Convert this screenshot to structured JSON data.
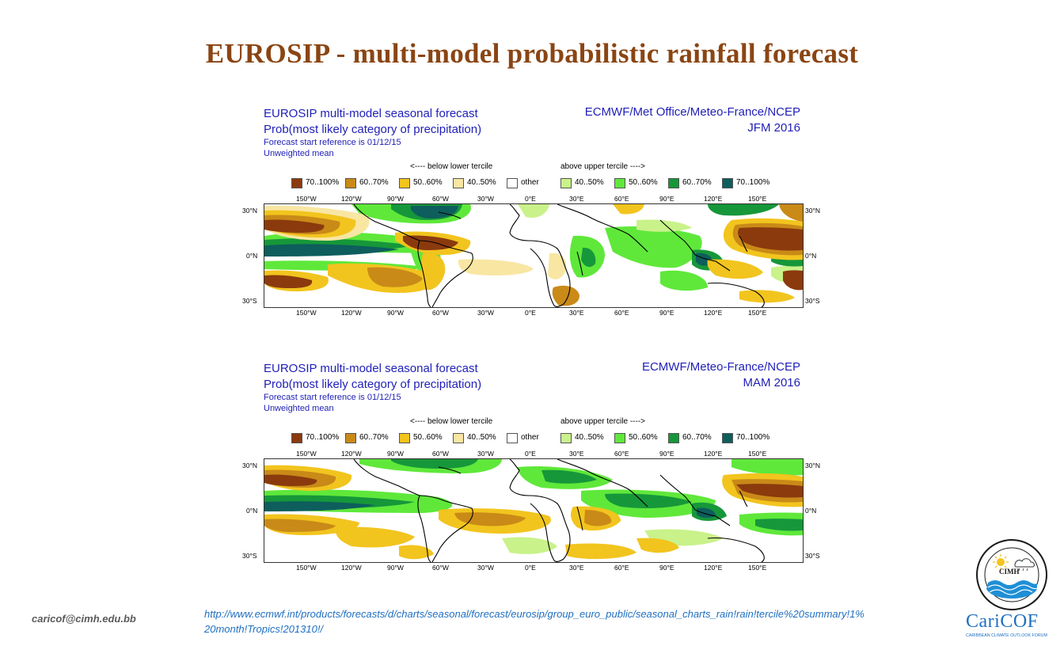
{
  "slide": {
    "title": "EUROSIP - multi-model probabilistic rainfall forecast",
    "email": "caricof@cimh.edu.bb",
    "url": "http://www.ecmwf.int/products/forecasts/d/charts/seasonal/forecast/eurosip/group_euro_public/seasonal_charts_rain!rain!tercile%20summary!1%20month!Tropics!201310!/"
  },
  "colors": {
    "title": "#8a4513",
    "chart_text": "#1f1fb8",
    "url": "#1f6fc0"
  },
  "legend": {
    "below_label": "<---- below lower tercile",
    "above_label": "above upper tercile ---->",
    "items": [
      {
        "label": "70..100%",
        "color": "#8b3a0e"
      },
      {
        "label": "60..70%",
        "color": "#c98a18"
      },
      {
        "label": "50..60%",
        "color": "#f2c41e"
      },
      {
        "label": "40..50%",
        "color": "#f8e6a2"
      },
      {
        "label": "other",
        "color": "#ffffff"
      },
      {
        "label": "40..50%",
        "color": "#c9f28a"
      },
      {
        "label": "50..60%",
        "color": "#5fe83a"
      },
      {
        "label": "60..70%",
        "color": "#16973a"
      },
      {
        "label": "70..100%",
        "color": "#0d5e5c"
      }
    ]
  },
  "axes": {
    "lon_labels": [
      "150°W",
      "120°W",
      "90°W",
      "60°W",
      "30°W",
      "0°E",
      "30°E",
      "60°E",
      "90°E",
      "120°E",
      "150°E"
    ],
    "lat_labels": [
      "30°N",
      "0°N",
      "30°S"
    ]
  },
  "panels": [
    {
      "title1": "EUROSIP multi-model seasonal forecast",
      "title2": "Prob(most likely category of precipitation)",
      "title3": "Forecast start reference is 01/12/15",
      "title4": "Unweighted mean",
      "source": "ECMWF/Met Office/Meteo-France/NCEP",
      "season": "JFM 2016"
    },
    {
      "title1": "EUROSIP multi-model seasonal forecast",
      "title2": "Prob(most likely category of precipitation)",
      "title3": "Forecast start reference is 01/12/15",
      "title4": "Unweighted mean",
      "source": "ECMWF/Meteo-France/NCEP",
      "season": "MAM 2016"
    }
  ],
  "logo": {
    "cimh_text": "CIMH",
    "caricof_text": "CariCOF",
    "subtitle": "CARIBBEAN CLIMATE OUTLOOK FORUM",
    "ring_text": "Caribbean Institute for Meteorology and Hydrology"
  }
}
